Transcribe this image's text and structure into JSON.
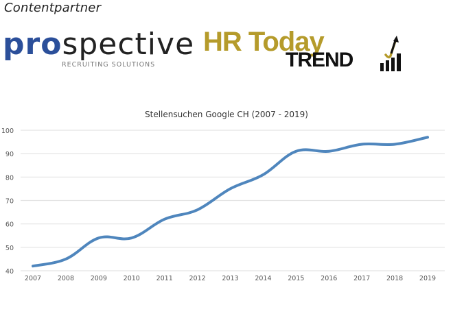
{
  "header": {
    "label": "Contentpartner",
    "logos": [
      {
        "name": "prospective",
        "word_a": "pro",
        "word_b": "spective",
        "tagline": "RECRUITING SOLUTIONS",
        "color": "#2b4f9a"
      },
      {
        "name": "hr-today-trend",
        "word_a": "HR Today",
        "word_b": "TREND",
        "color_a": "#b59b2b",
        "color_b": "#111111"
      }
    ]
  },
  "chart_data": {
    "type": "line",
    "title": "Stellensuchen Google CH (2007 - 2019)",
    "xlabel": "",
    "ylabel": "",
    "categories": [
      "2007",
      "2008",
      "2009",
      "2010",
      "2011",
      "2012",
      "2013",
      "2014",
      "2015",
      "2016",
      "2017",
      "2018",
      "2019"
    ],
    "series": [
      {
        "name": "Stellensuchen",
        "color": "#4f86bd",
        "values": [
          42,
          45,
          54,
          54,
          62,
          66,
          75,
          81,
          91,
          91,
          94,
          94,
          97
        ]
      }
    ],
    "ylim": [
      40,
      100
    ],
    "yticks": [
      40,
      50,
      60,
      70,
      80,
      90,
      100
    ],
    "grid": true,
    "legend": "none",
    "smooth": true
  }
}
